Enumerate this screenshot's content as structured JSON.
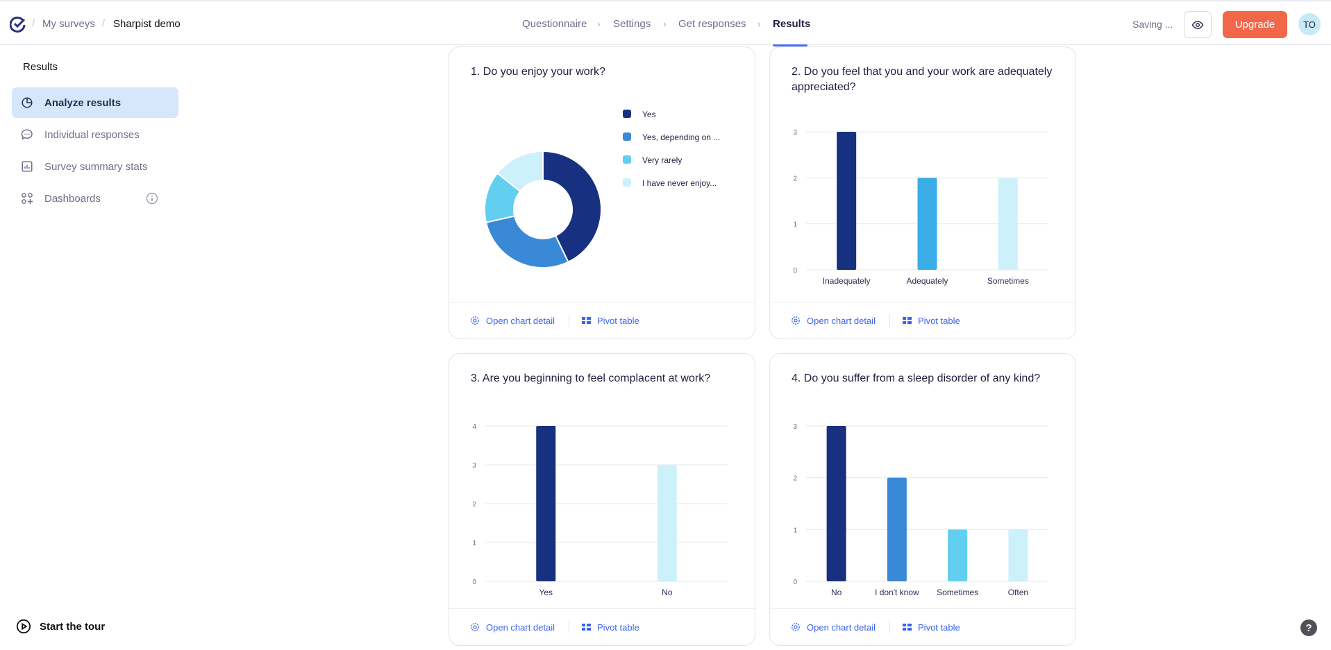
{
  "header": {
    "breadcrumb": [
      "My surveys",
      "Sharpist demo"
    ],
    "nav": [
      "Questionnaire",
      "Settings",
      "Get responses",
      "Results"
    ],
    "active_nav": "Results",
    "status": "Saving ...",
    "upgrade": "Upgrade",
    "avatar": "TO"
  },
  "sidebar": {
    "title": "Results",
    "items": [
      {
        "label": "Analyze results",
        "icon": "pie-chart-icon"
      },
      {
        "label": "Individual responses",
        "icon": "chat-bubble-icon"
      },
      {
        "label": "Survey summary stats",
        "icon": "bar-chart-icon"
      },
      {
        "label": "Dashboards",
        "icon": "dashboard-icon"
      }
    ],
    "tour": "Start the tour",
    "help": "?"
  },
  "footer": {
    "detail": "Open chart detail",
    "pivot": "Pivot table"
  },
  "colors": {
    "navy": "#17307f",
    "blue": "#3a89d6",
    "cyan": "#62cff0",
    "light": "#cdf1fb",
    "sky": "#3aaee6"
  },
  "chart_data": [
    {
      "type": "pie",
      "title": "1. Do you enjoy your work?",
      "categories": [
        "Yes",
        "Yes, depending on ...",
        "Very rarely",
        "I have never enjoy..."
      ],
      "values": [
        3,
        2,
        1,
        1
      ],
      "colors": [
        "#17307f",
        "#3a89d6",
        "#62cff0",
        "#cdf1fb"
      ],
      "legend": "right"
    },
    {
      "type": "bar",
      "title": "2. Do you feel that you and your work are adequately appreciated?",
      "categories": [
        "Inadequately",
        "Adequately",
        "Sometimes"
      ],
      "values": [
        3,
        2,
        2
      ],
      "colors": [
        "#17307f",
        "#3aaee6",
        "#cdf1fb"
      ],
      "ylim": [
        0,
        3
      ],
      "yticks": [
        "0",
        "1",
        "2",
        "3"
      ],
      "grid": true
    },
    {
      "type": "bar",
      "title": "3. Are you beginning to feel complacent at work?",
      "categories": [
        "Yes",
        "No"
      ],
      "values": [
        4,
        3
      ],
      "colors": [
        "#17307f",
        "#cdf1fb"
      ],
      "ylim": [
        0,
        4
      ],
      "yticks": [
        "0",
        "1",
        "2",
        "3",
        "4"
      ],
      "grid": true
    },
    {
      "type": "bar",
      "title": "4. Do you suffer from a sleep disorder of any kind?",
      "categories": [
        "No",
        "I don't know",
        "Sometimes",
        "Often"
      ],
      "values": [
        3,
        2,
        1,
        1
      ],
      "colors": [
        "#17307f",
        "#3a89d6",
        "#62cff0",
        "#cdf1fb"
      ],
      "ylim": [
        0,
        3
      ],
      "yticks": [
        "0",
        "1",
        "2",
        "3"
      ],
      "grid": true
    }
  ]
}
